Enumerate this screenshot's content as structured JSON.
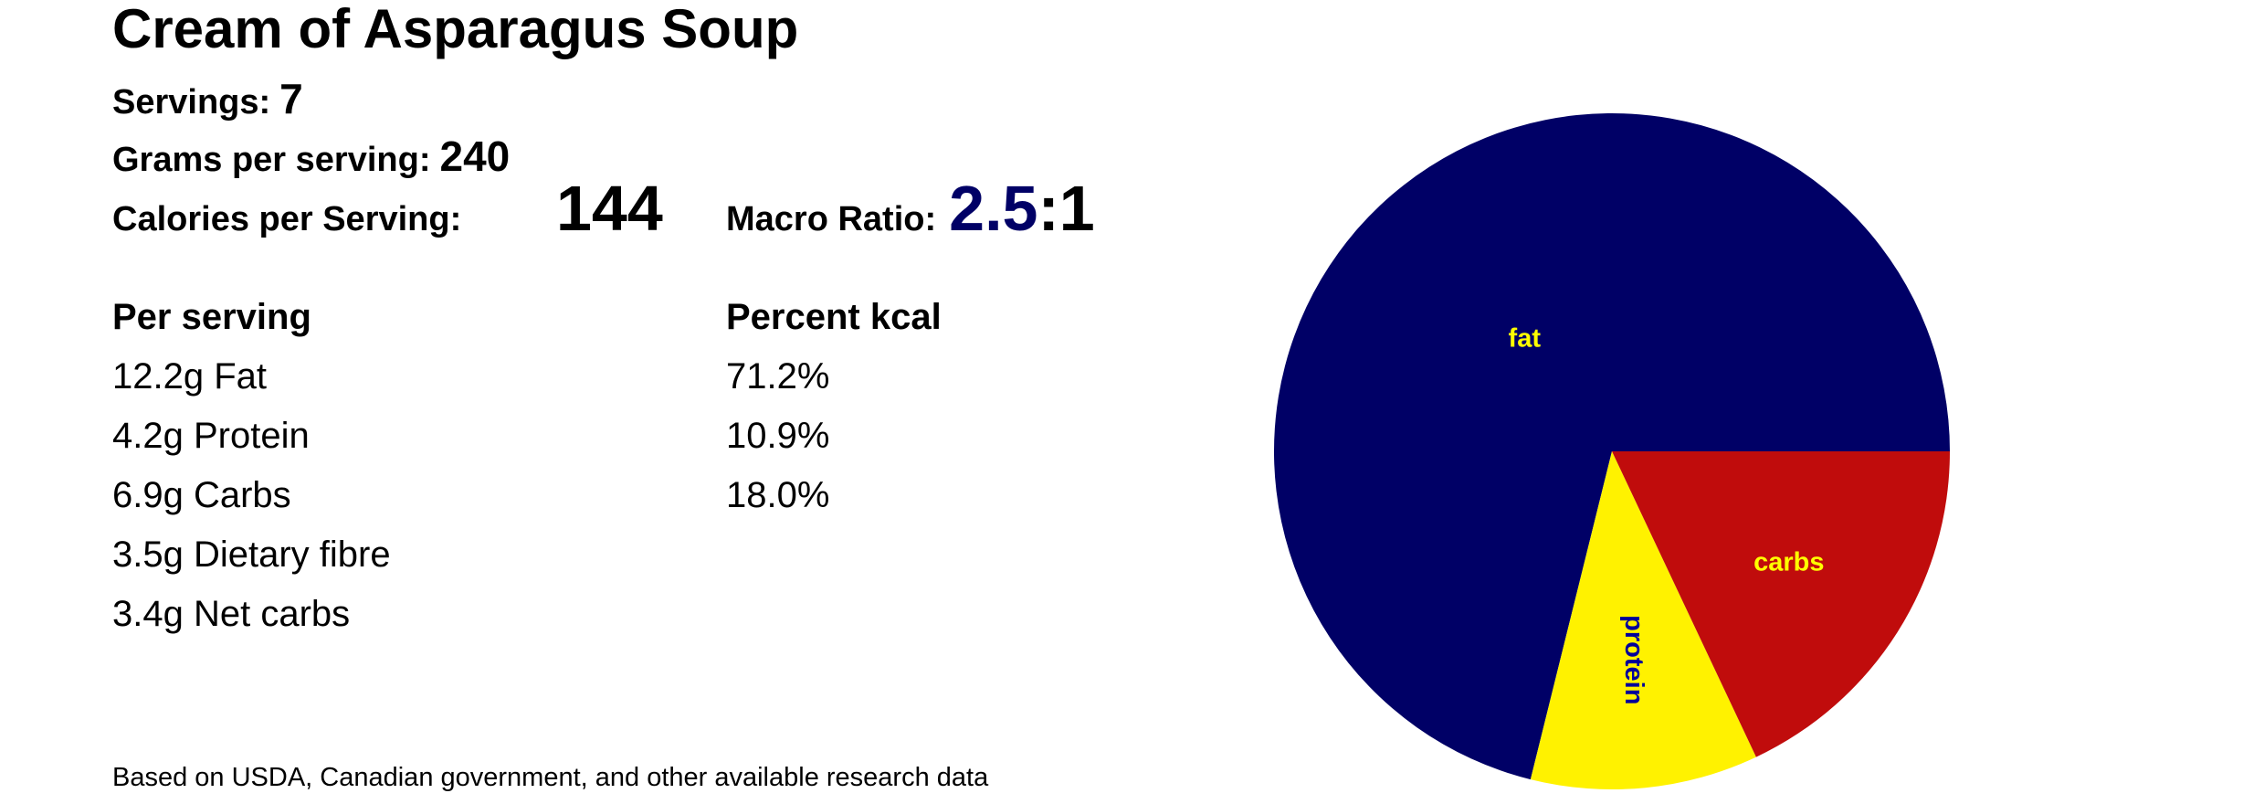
{
  "title": "Cream of Asparagus Soup",
  "servings": {
    "label": "Servings:",
    "value": "7"
  },
  "grams": {
    "label": "Grams per serving:",
    "value": "240"
  },
  "calories": {
    "label": "Calories per Serving:",
    "value": "144"
  },
  "macro_ratio": {
    "label": "Macro Ratio:",
    "value": "2.5",
    "suffix": ":1"
  },
  "table": {
    "headers": [
      "Per serving",
      "Percent kcal"
    ],
    "rows": [
      [
        "12.2g Fat",
        "71.2%"
      ],
      [
        "4.2g Protein",
        "10.9%"
      ],
      [
        "6.9g Carbs",
        "18.0%"
      ],
      [
        "3.5g Dietary fibre"
      ],
      [
        "3.4g Net carbs"
      ]
    ]
  },
  "footer": "Based on USDA, Canadian government, and other available research data",
  "chart_data": {
    "type": "pie",
    "categories": [
      "fat",
      "protein",
      "carbs"
    ],
    "values": [
      71.2,
      10.9,
      18.0
    ],
    "colors": [
      "#000066",
      "#fff200",
      "#c00c0c"
    ],
    "label_colors": [
      "#ffff00",
      "#00009a",
      "#ffff00"
    ]
  }
}
